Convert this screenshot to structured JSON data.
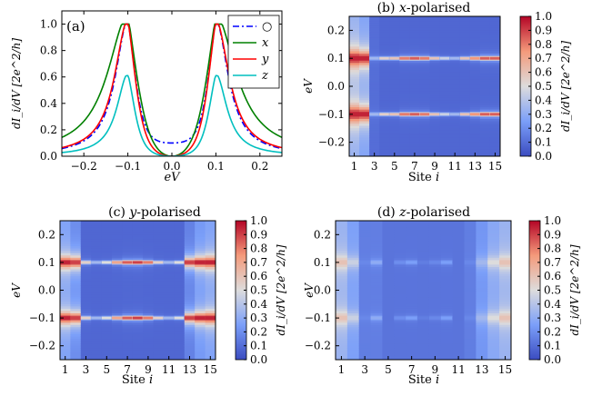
{
  "chart_data": [
    {
      "panel": "(a)",
      "type": "line",
      "title": "",
      "xlabel": "eV",
      "ylabel": "dI_i/dV [2e^2/h]",
      "xlim": [
        -0.25,
        0.25
      ],
      "ylim": [
        0.0,
        1.1
      ],
      "xticks": [
        -0.2,
        -0.1,
        0.0,
        0.1,
        0.2
      ],
      "xtick_labels": [
        "−0.2",
        "−0.1",
        "0.0",
        "0.1",
        "0.2"
      ],
      "yticks": [
        0.0,
        0.2,
        0.4,
        0.6,
        0.8,
        1.0
      ],
      "ytick_labels": [
        "0.0",
        "0.2",
        "0.4",
        "0.6",
        "0.8",
        "1.0"
      ],
      "legend_position": "top-right",
      "series": [
        {
          "name": "○",
          "color": "#0000ff",
          "style": "dashdot",
          "peak": 1.0,
          "center": 0.1,
          "width": 0.034,
          "floor": 0.1
        },
        {
          "name": "x",
          "color": "#008000",
          "style": "solid",
          "peak": 1.0,
          "center": 0.1,
          "width": 0.055,
          "floor": 0.0
        },
        {
          "name": "y",
          "color": "#ff0000",
          "style": "solid",
          "peak": 1.0,
          "center": 0.1,
          "width": 0.036,
          "floor": 0.0
        },
        {
          "name": "z",
          "color": "#00bfbf",
          "style": "solid",
          "peak": 0.61,
          "center": 0.1,
          "width": 0.03,
          "floor": 0.0
        }
      ]
    },
    {
      "panel": "(b)",
      "type": "heatmap",
      "title": "(b) x-polarised",
      "xlabel": "Site i",
      "ylabel": "eV",
      "ylim": [
        -0.25,
        0.25
      ],
      "sites": [
        1,
        2,
        3,
        4,
        5,
        6,
        7,
        8,
        9,
        10,
        11,
        12,
        13,
        14,
        15
      ],
      "xtick_labels": [
        "1",
        "3",
        "5",
        "7",
        "9",
        "11",
        "13",
        "15"
      ],
      "ytick_labels": [
        "0.2",
        "0.1",
        "0.0",
        "−0.1",
        "−0.2"
      ],
      "peak_heights": [
        0.95,
        0.95,
        0.35,
        0.55,
        0.6,
        0.8,
        0.85,
        0.8,
        0.6,
        0.45,
        0.35,
        0.6,
        0.75,
        0.85,
        0.85
      ],
      "peak_widths": [
        0.03,
        0.026,
        0.004,
        0.003,
        0.003,
        0.004,
        0.004,
        0.004,
        0.003,
        0.003,
        0.003,
        0.003,
        0.004,
        0.005,
        0.005
      ],
      "background": [
        0.3,
        0.25,
        0.1,
        0.08,
        0.08,
        0.08,
        0.08,
        0.08,
        0.08,
        0.08,
        0.08,
        0.08,
        0.08,
        0.08,
        0.08
      ]
    },
    {
      "panel": "(c)",
      "type": "heatmap",
      "title": "(c) y-polarised",
      "xlabel": "Site i",
      "ylabel": "eV",
      "ylim": [
        -0.25,
        0.25
      ],
      "sites": [
        1,
        2,
        3,
        4,
        5,
        6,
        7,
        8,
        9,
        10,
        11,
        12,
        13,
        14,
        15
      ],
      "xtick_labels": [
        "1",
        "3",
        "5",
        "7",
        "9",
        "11",
        "13",
        "15"
      ],
      "ytick_labels": [
        "0.2",
        "0.1",
        "0.0",
        "−0.1",
        "−0.2"
      ],
      "peak_heights": [
        0.95,
        0.9,
        0.55,
        0.35,
        0.5,
        0.7,
        0.85,
        0.9,
        0.8,
        0.55,
        0.35,
        0.5,
        0.9,
        0.95,
        0.95
      ],
      "peak_widths": [
        0.02,
        0.02,
        0.004,
        0.003,
        0.003,
        0.004,
        0.005,
        0.005,
        0.004,
        0.003,
        0.003,
        0.003,
        0.015,
        0.018,
        0.02
      ],
      "background": [
        0.25,
        0.18,
        0.08,
        0.08,
        0.08,
        0.08,
        0.08,
        0.08,
        0.08,
        0.08,
        0.08,
        0.08,
        0.15,
        0.22,
        0.25
      ]
    },
    {
      "panel": "(d)",
      "type": "heatmap",
      "title": "(d) z-polarised",
      "xlabel": "Site i",
      "ylabel": "eV",
      "ylim": [
        -0.25,
        0.25
      ],
      "sites": [
        1,
        2,
        3,
        4,
        5,
        6,
        7,
        8,
        9,
        10,
        11,
        12,
        13,
        14,
        15
      ],
      "xtick_labels": [
        "1",
        "3",
        "5",
        "7",
        "9",
        "11",
        "13",
        "15"
      ],
      "ytick_labels": [
        "0.2",
        "0.1",
        "0.0",
        "−0.1",
        "−0.2"
      ],
      "peak_heights": [
        0.6,
        0.45,
        0.18,
        0.3,
        0.12,
        0.2,
        0.25,
        0.15,
        0.18,
        0.25,
        0.12,
        0.18,
        0.35,
        0.5,
        0.6
      ],
      "peak_widths": [
        0.025,
        0.022,
        0.01,
        0.008,
        0.005,
        0.006,
        0.006,
        0.005,
        0.006,
        0.006,
        0.005,
        0.008,
        0.02,
        0.022,
        0.025
      ],
      "background": [
        0.32,
        0.25,
        0.15,
        0.15,
        0.12,
        0.12,
        0.12,
        0.12,
        0.12,
        0.12,
        0.12,
        0.15,
        0.22,
        0.28,
        0.32
      ]
    }
  ],
  "colorbar": {
    "label": "dI_i/dV [2e^2/h]",
    "range": [
      0.0,
      1.0
    ],
    "tick_labels": [
      "0.0",
      "0.1",
      "0.2",
      "0.3",
      "0.4",
      "0.5",
      "0.6",
      "0.7",
      "0.8",
      "0.9",
      "1.0"
    ],
    "colormap": "coolwarm"
  },
  "labels": {
    "panel_a": "(a)",
    "title_b_prefix": "(b) ",
    "title_b_var": "x",
    "title_c_prefix": "(c) ",
    "title_c_var": "y",
    "title_d_prefix": "(d) ",
    "title_d_var": "z",
    "title_suffix": "-polarised",
    "site_word": "Site ",
    "site_var": "i",
    "ev_label": "eV"
  }
}
